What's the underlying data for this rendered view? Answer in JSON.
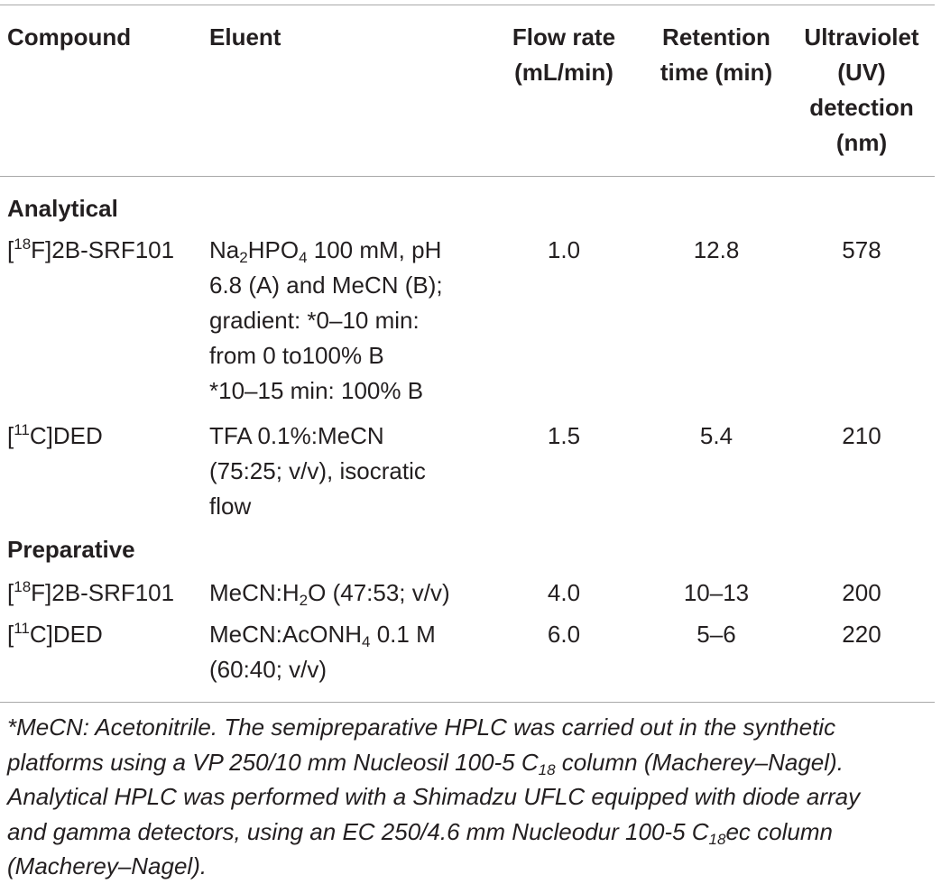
{
  "headers": {
    "compound": "Compound",
    "eluent": "Eluent",
    "flow_rate": [
      "Flow rate",
      "(mL/min)"
    ],
    "retention_time": [
      "Retention",
      "time (min)"
    ],
    "uv_detection": [
      "Ultraviolet",
      "(UV)",
      "detection",
      "(nm)"
    ]
  },
  "sections": [
    {
      "label": "Analytical",
      "rows": [
        {
          "compound": {
            "pre": "[",
            "sup": "18",
            "post": "F]2B-SRF101"
          },
          "eluent": [
            {
              "a": "Na",
              "sub": "2",
              "b": "HPO",
              "sub2": "4",
              "c": " 100 mM, pH"
            },
            "6.8 (A) and MeCN (B);",
            "gradient: *0–10 min:",
            "from 0 to100% B",
            "*10–15 min: 100% B"
          ],
          "flow_rate": "1.0",
          "retention_time": "12.8",
          "uv": "578"
        },
        {
          "compound": {
            "pre": "[",
            "sup": "11",
            "post": "C]DED"
          },
          "eluent": [
            "TFA 0.1%:MeCN",
            "(75:25; v/v), isocratic",
            "flow"
          ],
          "flow_rate": "1.5",
          "retention_time": "5.4",
          "uv": "210"
        }
      ]
    },
    {
      "label": "Preparative",
      "rows": [
        {
          "compound": {
            "pre": "[",
            "sup": "18",
            "post": "F]2B-SRF101"
          },
          "eluent": [
            {
              "a": "MeCN:H",
              "sub": "2",
              "b": "O (47:53; v/v)"
            }
          ],
          "flow_rate": "4.0",
          "retention_time": "10–13",
          "uv": "200"
        },
        {
          "compound": {
            "pre": "[",
            "sup": "11",
            "post": "C]DED"
          },
          "eluent": [
            {
              "a": "MeCN:AcONH",
              "sub": "4",
              "b": " 0.1 M"
            },
            "(60:40; v/v)"
          ],
          "flow_rate": "6.0",
          "retention_time": "5–6",
          "uv": "220"
        }
      ]
    }
  ],
  "footnote": {
    "line1": "*MeCN: Acetonitrile. The semipreparative HPLC was carried out in the synthetic",
    "line2a": "platforms using a VP 250/10 mm Nucleosil 100-5 C",
    "line2sub": "18",
    "line2b": " column (Macherey–Nagel).",
    "line3": "Analytical HPLC was performed with a Shimadzu UFLC equipped with diode array",
    "line4a": "and gamma detectors, using an EC 250/4.6 mm Nucleodur 100-5 C",
    "line4sub": "18",
    "line4b": "ec column",
    "line5": "(Macherey–Nagel)."
  }
}
